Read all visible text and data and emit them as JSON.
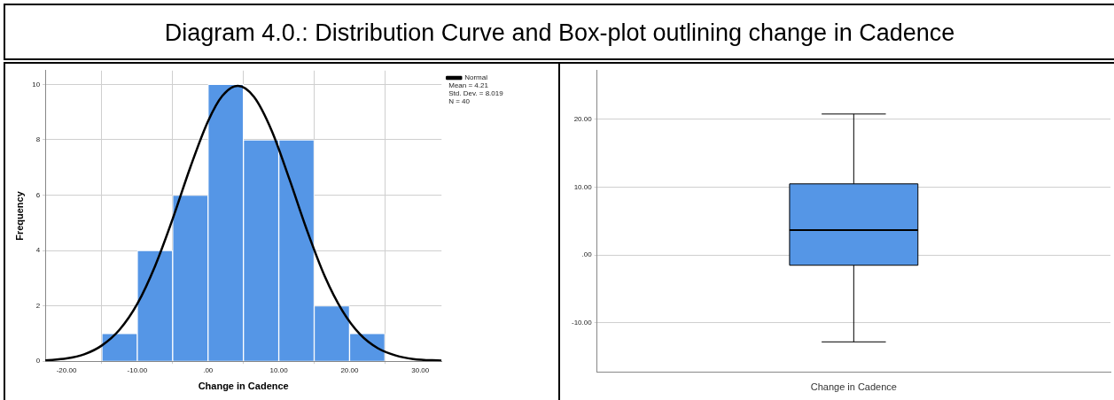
{
  "chart_data": [
    {
      "type": "histogram",
      "title": "Diagram 4.0.: Distribution Curve and Box-plot outlining change in Cadence",
      "xlabel": "Change in Cadence",
      "ylabel": "Frequency",
      "bins": [
        -15,
        -10,
        -5,
        0,
        5,
        10,
        15,
        20,
        25
      ],
      "values": [
        1,
        4,
        6,
        10,
        8,
        8,
        2,
        1
      ],
      "color": "#5596e6",
      "xlim": [
        -23,
        33
      ],
      "xticks": [
        {
          "value": -20,
          "label": "-20.00"
        },
        {
          "value": -10,
          "label": "-10.00"
        },
        {
          "value": 0,
          "label": ".00"
        },
        {
          "value": 10,
          "label": "10.00"
        },
        {
          "value": 20,
          "label": "20.00"
        },
        {
          "value": 30,
          "label": "30.00"
        }
      ],
      "ylim": [
        0,
        10.5
      ],
      "yticks": [
        0,
        2,
        4,
        6,
        8,
        10
      ],
      "grid": true,
      "legend": "top right",
      "series": [
        {
          "type": "line",
          "name": "Normal",
          "color": "#000000",
          "x": [
            -23,
            -20,
            -17.5,
            -15,
            -12.5,
            -10,
            -7.5,
            -5,
            -2.5,
            0,
            2,
            4.21,
            6.5,
            9,
            11.5,
            14,
            16.5,
            19,
            21.5,
            24,
            26.5,
            29,
            33
          ],
          "values": [
            0.03,
            0.1,
            0.25,
            0.57,
            1.14,
            2.07,
            3.43,
            5.14,
            7.01,
            8.67,
            9.58,
            9.95,
            9.55,
            8.33,
            6.58,
            4.72,
            3.07,
            1.82,
            0.97,
            0.47,
            0.21,
            0.08,
            0.02
          ]
        }
      ],
      "annotations": [
        "Mean = 4.21",
        "Std. Dev. = 8.019",
        "N = 40"
      ]
    },
    {
      "type": "box",
      "categories": [
        "Change in Cadence"
      ],
      "color": "#5596e6",
      "boxes": [
        {
          "low": -12.8,
          "q1": -1.5,
          "median": 3.7,
          "q3": 10.5,
          "high": 20.8
        }
      ],
      "ylim": [
        -17.3,
        27.2
      ],
      "yticks": [
        {
          "value": -10,
          "label": "-10.00"
        },
        {
          "value": 0,
          "label": ".00"
        },
        {
          "value": 10,
          "label": "10.00"
        },
        {
          "value": 20,
          "label": "20.00"
        }
      ],
      "grid": "y"
    }
  ]
}
